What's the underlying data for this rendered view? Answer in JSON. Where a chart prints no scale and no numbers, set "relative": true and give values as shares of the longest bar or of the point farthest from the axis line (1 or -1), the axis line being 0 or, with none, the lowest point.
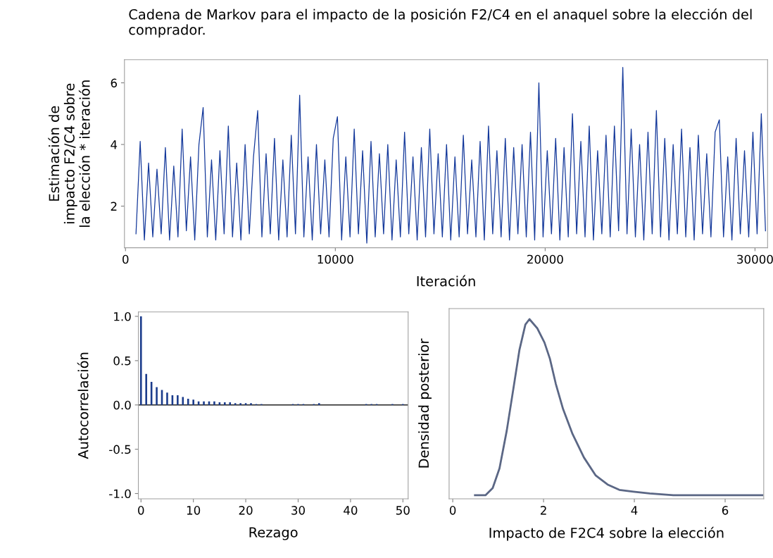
{
  "chart_data": [
    {
      "type": "line",
      "title": "Cadena de Markov para el impacto de la posición F2/C4 en el anaquel sobre la elección del comprador.",
      "xlabel": "Iteración",
      "ylabel": "Estimación de\nimpacto F2/C4 sobre\nla elección * iteración",
      "xlim": [
        -50,
        30600
      ],
      "ylim": [
        0.65,
        6.75
      ],
      "xticks": [
        0,
        10000,
        20000,
        30000
      ],
      "yticks": [
        2,
        4,
        6
      ],
      "grid": false,
      "legend": false,
      "x": [
        500,
        700,
        900,
        1100,
        1300,
        1500,
        1700,
        1900,
        2100,
        2300,
        2500,
        2700,
        2900,
        3100,
        3300,
        3500,
        3700,
        3900,
        4100,
        4300,
        4500,
        4700,
        4900,
        5100,
        5300,
        5500,
        5700,
        5900,
        6100,
        6300,
        6500,
        6700,
        6900,
        7100,
        7300,
        7500,
        7700,
        7900,
        8100,
        8300,
        8500,
        8700,
        8900,
        9100,
        9300,
        9500,
        9700,
        9900,
        10100,
        10300,
        10500,
        10700,
        10900,
        11100,
        11300,
        11500,
        11700,
        11900,
        12100,
        12300,
        12500,
        12700,
        12900,
        13100,
        13300,
        13500,
        13700,
        13900,
        14100,
        14300,
        14500,
        14700,
        14900,
        15100,
        15300,
        15500,
        15700,
        15900,
        16100,
        16300,
        16500,
        16700,
        16900,
        17100,
        17300,
        17500,
        17700,
        17900,
        18100,
        18300,
        18500,
        18700,
        18900,
        19100,
        19300,
        19500,
        19700,
        19900,
        20100,
        20300,
        20500,
        20700,
        20900,
        21100,
        21300,
        21500,
        21700,
        21900,
        22100,
        22300,
        22500,
        22700,
        22900,
        23100,
        23300,
        23500,
        23700,
        23900,
        24100,
        24300,
        24500,
        24700,
        24900,
        25100,
        25300,
        25500,
        25700,
        25900,
        26100,
        26300,
        26500,
        26700,
        26900,
        27100,
        27300,
        27500,
        27700,
        27900,
        28100,
        28300,
        28500,
        28700,
        28900,
        29100,
        29300,
        29500,
        29700,
        29900,
        30100,
        30300,
        30500
      ],
      "series": [
        {
          "color": "#12379a",
          "values": [
            1.1,
            4.1,
            0.9,
            3.4,
            1.0,
            3.2,
            1.1,
            3.9,
            0.9,
            3.3,
            1.0,
            4.5,
            1.2,
            3.6,
            0.9,
            4.0,
            5.2,
            1.0,
            3.5,
            0.9,
            3.8,
            1.1,
            4.6,
            1.0,
            3.4,
            0.9,
            4.0,
            1.1,
            3.6,
            5.1,
            1.0,
            3.7,
            1.1,
            4.2,
            0.9,
            3.5,
            1.0,
            4.3,
            1.1,
            5.6,
            1.0,
            3.6,
            0.9,
            4.0,
            1.1,
            3.5,
            1.0,
            4.2,
            4.9,
            0.9,
            3.6,
            1.0,
            4.5,
            1.1,
            3.8,
            0.8,
            4.1,
            1.0,
            3.7,
            1.1,
            4.0,
            0.9,
            3.5,
            1.0,
            4.4,
            1.1,
            3.6,
            0.9,
            3.9,
            1.0,
            4.5,
            1.1,
            3.7,
            1.0,
            4.0,
            0.9,
            3.6,
            1.0,
            4.3,
            1.1,
            3.5,
            1.0,
            4.1,
            0.9,
            4.6,
            1.1,
            3.8,
            1.0,
            4.2,
            0.9,
            3.9,
            1.1,
            4.0,
            1.0,
            4.4,
            0.9,
            6.0,
            1.0,
            3.8,
            1.1,
            4.2,
            0.9,
            3.9,
            1.0,
            5.0,
            1.1,
            4.1,
            1.0,
            4.6,
            0.9,
            3.8,
            1.1,
            4.3,
            1.0,
            4.6,
            1.2,
            6.5,
            1.1,
            4.5,
            1.0,
            4.0,
            0.9,
            4.4,
            1.1,
            5.1,
            1.0,
            4.2,
            0.9,
            4.0,
            1.1,
            4.5,
            1.0,
            3.9,
            0.9,
            4.3,
            1.1,
            3.7,
            1.0,
            4.4,
            4.8,
            1.0,
            3.6,
            0.9,
            4.2,
            1.1,
            3.8,
            1.0,
            4.4,
            1.1,
            5.0,
            1.2
          ]
        }
      ]
    },
    {
      "type": "bar",
      "xlabel": "Rezago",
      "ylabel": "Autocorrelación",
      "xlim": [
        -0.5,
        51
      ],
      "ylim": [
        -1.06,
        1.05
      ],
      "xticks": [
        0,
        10,
        20,
        30,
        40,
        50
      ],
      "yticks": [
        {
          "value": 1.0,
          "label": "1.0"
        },
        {
          "value": 0.5,
          "label": "0.5"
        },
        {
          "value": 0.0,
          "label": "0.0"
        },
        {
          "value": -0.5,
          "label": "-0.5"
        },
        {
          "value": -1.0,
          "label": "-1.0"
        }
      ],
      "grid": false,
      "x": [
        0,
        1,
        2,
        3,
        4,
        5,
        6,
        7,
        8,
        9,
        10,
        11,
        12,
        13,
        14,
        15,
        16,
        17,
        18,
        19,
        20,
        21,
        22,
        23,
        24,
        25,
        26,
        27,
        28,
        29,
        30,
        31,
        32,
        33,
        34,
        35,
        36,
        37,
        38,
        39,
        40,
        41,
        42,
        43,
        44,
        45,
        46,
        47,
        48,
        49,
        50
      ],
      "ref_lines": [
        {
          "axis": "y",
          "value": 0,
          "color": "#222222"
        }
      ],
      "series": [
        {
          "color": "#1b3c8c",
          "values": [
            1.0,
            0.35,
            0.26,
            0.2,
            0.17,
            0.14,
            0.11,
            0.11,
            0.09,
            0.07,
            0.06,
            0.04,
            0.04,
            0.04,
            0.04,
            0.03,
            0.03,
            0.03,
            0.02,
            0.02,
            0.02,
            0.02,
            0.01,
            0.01,
            0.0,
            0.0,
            0.0,
            0.0,
            0.0,
            0.01,
            0.01,
            0.01,
            0.0,
            0.01,
            0.02,
            0.0,
            0.0,
            0.0,
            0.0,
            0.0,
            0.0,
            0.0,
            0.0,
            0.01,
            0.01,
            0.01,
            0.0,
            0.0,
            0.01,
            0.0,
            0.01
          ]
        }
      ]
    },
    {
      "type": "line",
      "relative": true,
      "xlabel": "Impacto de F2C4 sobre la elección",
      "ylabel": "Densidad posterior",
      "xlim": [
        -0.08,
        6.85
      ],
      "xticks": [
        0,
        2,
        4,
        6
      ],
      "tick_labels": "x",
      "grid": false,
      "x": [
        0.49,
        0.72,
        0.88,
        1.03,
        1.19,
        1.34,
        1.47,
        1.6,
        1.69,
        1.86,
        2.02,
        2.14,
        2.27,
        2.43,
        2.64,
        2.89,
        3.15,
        3.41,
        3.67,
        3.98,
        4.34,
        4.86,
        5.37,
        5.89,
        6.82
      ],
      "series": [
        {
          "color": "#5b6785",
          "values": [
            0.02,
            0.02,
            0.06,
            0.17,
            0.38,
            0.62,
            0.83,
            0.97,
            1.0,
            0.95,
            0.87,
            0.78,
            0.64,
            0.5,
            0.36,
            0.23,
            0.13,
            0.08,
            0.05,
            0.04,
            0.03,
            0.02,
            0.02,
            0.02,
            0.02
          ]
        }
      ]
    }
  ]
}
